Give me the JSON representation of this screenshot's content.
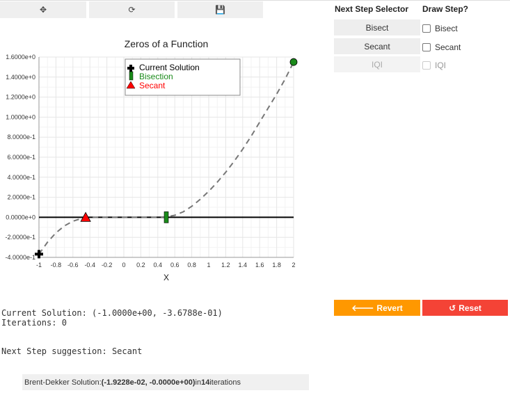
{
  "toolbar": {
    "move_icon": "move-icon",
    "refresh_icon": "refresh-icon",
    "save_icon": "save-icon"
  },
  "selector": {
    "header": "Next Step Selector",
    "buttons": [
      {
        "label": "Bisect",
        "enabled": true
      },
      {
        "label": "Secant",
        "enabled": true
      },
      {
        "label": "IQI",
        "enabled": false
      }
    ]
  },
  "draw_step": {
    "header": "Draw Step?",
    "options": [
      {
        "label": "Bisect",
        "checked": false,
        "enabled": true
      },
      {
        "label": "Secant",
        "checked": false,
        "enabled": true
      },
      {
        "label": "IQI",
        "checked": false,
        "enabled": false
      }
    ]
  },
  "actions": {
    "revert_label": "Revert",
    "reset_label": "Reset",
    "revert_color": "#ff9800",
    "reset_color": "#f44336"
  },
  "status": {
    "current_solution": "Current Solution: (-1.0000e+00, -3.6788e-01)",
    "iterations": "Iterations: 0",
    "next_step": "Next Step suggestion: Secant"
  },
  "brent": {
    "prefix": "Brent-Dekker Solution: ",
    "solution": "(-1.9228e-02, -0.0000e+00)",
    "middle": " in ",
    "iterations": "14",
    "suffix": " iterations"
  },
  "chart_data": {
    "type": "line",
    "title": "Zeros of a Function",
    "xlabel": "X",
    "ylabel": "",
    "xlim": [
      -1.0,
      2.0
    ],
    "ylim": [
      -0.4,
      1.6
    ],
    "grid": true,
    "x_ticks": [
      "-1",
      "-0.8",
      "-0.6",
      "-0.4",
      "-0.2",
      "0",
      "0.2",
      "0.4",
      "0.6",
      "0.8",
      "1",
      "1.2",
      "1.4",
      "1.6",
      "1.8",
      "2"
    ],
    "x_tick_values": [
      -1,
      -0.8,
      -0.6,
      -0.4,
      -0.2,
      0,
      0.2,
      0.4,
      0.6,
      0.8,
      1,
      1.2,
      1.4,
      1.6,
      1.8,
      2
    ],
    "y_ticks": [
      "1.6000e+0",
      "1.4000e+0",
      "1.2000e+0",
      "1.0000e+0",
      "8.0000e-1",
      "6.0000e-1",
      "4.0000e-1",
      "2.0000e-1",
      "0.0000e+0",
      "-2.0000e-1",
      "-4.0000e-1"
    ],
    "y_tick_values": [
      1.6,
      1.4,
      1.2,
      1.0,
      0.8,
      0.6,
      0.4,
      0.2,
      0.0,
      -0.2,
      -0.4
    ],
    "curve": {
      "style": "dashed",
      "color": "#777777",
      "x": [
        -1.0,
        -0.9,
        -0.8,
        -0.7,
        -0.6,
        -0.5,
        -0.4,
        -0.3,
        -0.2,
        -0.1,
        0.0,
        0.1,
        0.2,
        0.3,
        0.4,
        0.5,
        0.6,
        0.7,
        0.8,
        0.9,
        1.0,
        1.1,
        1.2,
        1.3,
        1.4,
        1.5,
        1.6,
        1.7,
        1.8,
        1.9,
        2.0
      ],
      "y": [
        -0.368,
        -0.249,
        -0.155,
        -0.086,
        -0.039,
        -0.012,
        -0.002,
        0.0,
        0.0,
        0.0,
        0.0,
        0.0,
        0.0,
        0.0,
        0.001,
        0.004,
        0.02,
        0.055,
        0.11,
        0.18,
        0.26,
        0.35,
        0.45,
        0.56,
        0.68,
        0.81,
        0.95,
        1.09,
        1.23,
        1.38,
        1.55
      ]
    },
    "baseline": {
      "y": 0,
      "x": [
        -1.0,
        2.0
      ],
      "color": "#000000"
    },
    "markers": [
      {
        "name": "current-solution-marker",
        "shape": "cross",
        "x": -1.0,
        "y": -0.368,
        "color": "#000000"
      },
      {
        "name": "secant-marker",
        "shape": "triangle",
        "x": -0.45,
        "y": 0.0,
        "color": "#ff0000"
      },
      {
        "name": "bisection-marker",
        "shape": "bar",
        "x": 0.5,
        "y": 0.0,
        "color": "#1a8a1a"
      },
      {
        "name": "endpoint-marker",
        "shape": "circle",
        "x": 2.0,
        "y": 1.55,
        "color": "#1a8a1a"
      }
    ],
    "legend": {
      "position": "top-center",
      "entries": [
        {
          "label": "Current Solution",
          "shape": "cross",
          "color": "#000000"
        },
        {
          "label": "Bisection",
          "shape": "bar",
          "color": "#1a8a1a"
        },
        {
          "label": "Secant",
          "shape": "triangle",
          "color": "#ff0000"
        }
      ]
    }
  }
}
